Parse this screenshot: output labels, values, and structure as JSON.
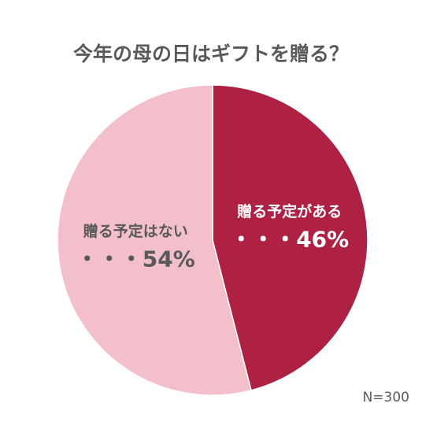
{
  "chart_data": {
    "type": "pie",
    "title": "今年の母の日はギフトを贈る？",
    "categories": [
      "贈る予定がある",
      "贈る予定はない"
    ],
    "values": [
      46,
      54
    ],
    "value_labels": [
      "・・・46%",
      "・・・54%"
    ],
    "colors": [
      "#ae2142",
      "#f2bfcb"
    ],
    "annotation": "N=300"
  }
}
